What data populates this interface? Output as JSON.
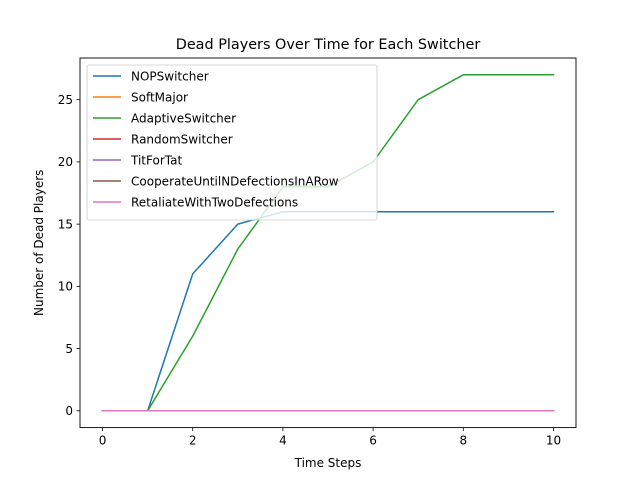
{
  "chart_data": {
    "type": "line",
    "title": "Dead Players Over Time for Each Switcher",
    "xlabel": "Time Steps",
    "ylabel": "Number of Dead Players",
    "xlim": [
      -0.5,
      10.5
    ],
    "ylim": [
      -1.35,
      28.35
    ],
    "xticks": [
      0,
      2,
      4,
      6,
      8,
      10
    ],
    "yticks": [
      0,
      5,
      10,
      15,
      20,
      25
    ],
    "grid": false,
    "legend_position": "upper-left",
    "x": [
      0,
      1,
      2,
      3,
      4,
      5,
      6,
      7,
      8,
      9,
      10
    ],
    "series": [
      {
        "name": "NOPSwitcher",
        "color": "#1f77b4",
        "values": [
          0,
          0,
          11,
          15,
          16,
          16,
          16,
          16,
          16,
          16,
          16
        ]
      },
      {
        "name": "SoftMajor",
        "color": "#ff7f0e",
        "values": [
          0,
          0,
          0,
          0,
          0,
          0,
          0,
          0,
          0,
          0,
          0
        ]
      },
      {
        "name": "AdaptiveSwitcher",
        "color": "#2ca02c",
        "values": [
          0,
          0,
          6,
          13,
          18,
          18,
          20,
          25,
          27,
          27,
          27
        ]
      },
      {
        "name": "RandomSwitcher",
        "color": "#d62728",
        "values": [
          0,
          0,
          0,
          0,
          0,
          0,
          0,
          0,
          0,
          0,
          0
        ]
      },
      {
        "name": "TitForTat",
        "color": "#9467bd",
        "values": [
          0,
          0,
          0,
          0,
          0,
          0,
          0,
          0,
          0,
          0,
          0
        ]
      },
      {
        "name": "CooperateUntilNDefectionsInARow",
        "color": "#8c564b",
        "values": [
          0,
          0,
          0,
          0,
          0,
          0,
          0,
          0,
          0,
          0,
          0
        ]
      },
      {
        "name": "RetaliateWithTwoDefections",
        "color": "#e377c2",
        "values": [
          0,
          0,
          0,
          0,
          0,
          0,
          0,
          0,
          0,
          0,
          0
        ]
      }
    ]
  }
}
